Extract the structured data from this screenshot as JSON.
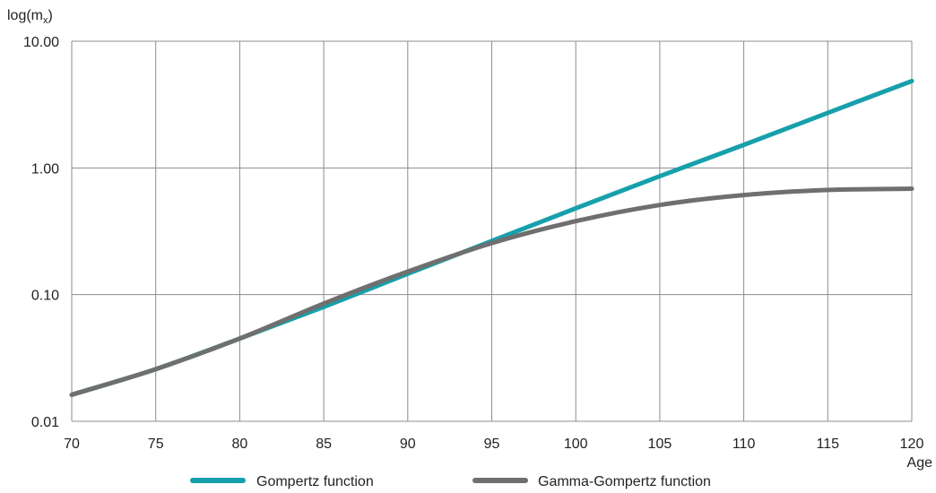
{
  "chart_data": {
    "type": "line",
    "ylabel": "log(mₓ)",
    "xlabel": "Age",
    "yscale": "log",
    "xlim": [
      70,
      120
    ],
    "ylim": [
      0.01,
      10
    ],
    "x_ticks": [
      70,
      75,
      80,
      85,
      90,
      95,
      100,
      105,
      110,
      115,
      120
    ],
    "y_ticks": [
      {
        "value": 0.01,
        "label": "0.01"
      },
      {
        "value": 0.1,
        "label": "0.10"
      },
      {
        "value": 1,
        "label": "1.00"
      },
      {
        "value": 10,
        "label": "10.00"
      }
    ],
    "grid": true,
    "legend_position": "bottom",
    "series": [
      {
        "name": "Gompertz function",
        "color": "#16a0ab",
        "x": [
          70,
          75,
          80,
          85,
          90,
          95,
          100,
          105,
          110,
          115,
          120
        ],
        "y": [
          0.0162,
          0.0258,
          0.045,
          0.08,
          0.146,
          0.265,
          0.48,
          0.86,
          1.52,
          2.72,
          4.85
        ]
      },
      {
        "name": "Gamma-Gompertz function",
        "color": "#6f6f6f",
        "x": [
          70,
          75,
          80,
          85,
          90,
          95,
          100,
          105,
          110,
          115,
          120
        ],
        "y": [
          0.0162,
          0.0258,
          0.045,
          0.085,
          0.152,
          0.255,
          0.38,
          0.51,
          0.61,
          0.67,
          0.685
        ]
      }
    ]
  }
}
